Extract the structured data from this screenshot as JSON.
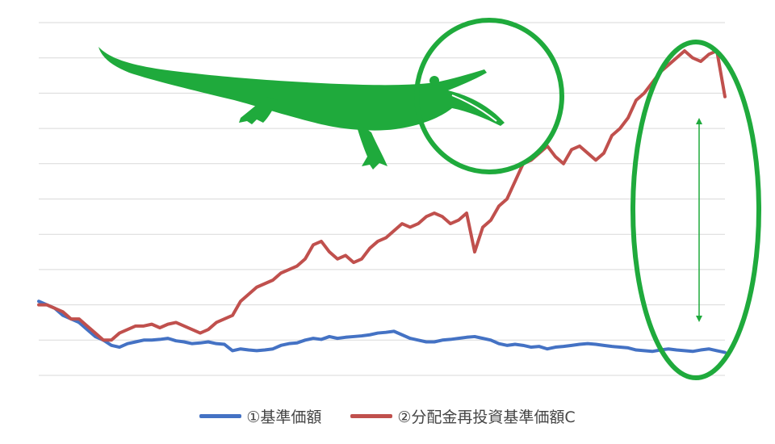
{
  "chart_data": {
    "type": "line",
    "title": "",
    "xlabel": "",
    "ylabel": "",
    "x": [
      0,
      1,
      2,
      3,
      4,
      5,
      6,
      7,
      8,
      9,
      10,
      11,
      12,
      13,
      14,
      15,
      16,
      17,
      18,
      19,
      20,
      21,
      22,
      23,
      24,
      25,
      26,
      27,
      28,
      29,
      30,
      31,
      32,
      33,
      34,
      35,
      36,
      37,
      38,
      39,
      40,
      41,
      42,
      43,
      44,
      45,
      46,
      47,
      48,
      49,
      50,
      51,
      52,
      53,
      54,
      55,
      56,
      57,
      58,
      59,
      60,
      61,
      62,
      63,
      64,
      65,
      66,
      67,
      68,
      69,
      70,
      71,
      72,
      73,
      74,
      75,
      76,
      77,
      78,
      79,
      80,
      81,
      82,
      83,
      84,
      85
    ],
    "ylim": [
      0,
      10
    ],
    "grid": true,
    "legend_position": "bottom",
    "series": [
      {
        "name": "①基準価額",
        "color": "#4472c4",
        "values": [
          2.1,
          2.0,
          1.9,
          1.7,
          1.6,
          1.5,
          1.3,
          1.1,
          1.0,
          0.85,
          0.8,
          0.9,
          0.95,
          1.0,
          1.0,
          1.02,
          1.05,
          0.98,
          0.95,
          0.9,
          0.92,
          0.95,
          0.9,
          0.88,
          0.7,
          0.75,
          0.72,
          0.7,
          0.72,
          0.75,
          0.85,
          0.9,
          0.92,
          1.0,
          1.05,
          1.02,
          1.1,
          1.05,
          1.08,
          1.1,
          1.12,
          1.15,
          1.2,
          1.22,
          1.25,
          1.15,
          1.05,
          1.0,
          0.95,
          0.95,
          1.0,
          1.02,
          1.05,
          1.08,
          1.1,
          1.05,
          1.0,
          0.9,
          0.85,
          0.88,
          0.85,
          0.8,
          0.82,
          0.75,
          0.8,
          0.82,
          0.85,
          0.88,
          0.9,
          0.88,
          0.85,
          0.82,
          0.8,
          0.78,
          0.72,
          0.7,
          0.68,
          0.72,
          0.75,
          0.72,
          0.7,
          0.68,
          0.72,
          0.75,
          0.7,
          0.65
        ]
      },
      {
        "name": "②分配金再投資基準価額C",
        "color": "#c0504d",
        "values": [
          2.0,
          2.0,
          1.9,
          1.8,
          1.6,
          1.6,
          1.4,
          1.2,
          1.0,
          1.0,
          1.2,
          1.3,
          1.4,
          1.4,
          1.45,
          1.35,
          1.45,
          1.5,
          1.4,
          1.3,
          1.2,
          1.3,
          1.5,
          1.6,
          1.7,
          2.1,
          2.3,
          2.5,
          2.6,
          2.7,
          2.9,
          3.0,
          3.1,
          3.3,
          3.7,
          3.8,
          3.5,
          3.3,
          3.4,
          3.2,
          3.3,
          3.6,
          3.8,
          3.9,
          4.1,
          4.3,
          4.2,
          4.3,
          4.5,
          4.6,
          4.5,
          4.3,
          4.4,
          4.6,
          3.5,
          4.2,
          4.4,
          4.8,
          5.0,
          5.5,
          6.0,
          6.1,
          6.3,
          6.5,
          6.2,
          6.0,
          6.4,
          6.5,
          6.3,
          6.1,
          6.3,
          6.8,
          7.0,
          7.3,
          7.8,
          8.0,
          8.3,
          8.6,
          8.8,
          9.0,
          9.2,
          9.0,
          8.9,
          9.1,
          9.2,
          7.9
        ]
      }
    ]
  },
  "legend": {
    "items": [
      {
        "label": "①基準価額",
        "color": "#4472c4"
      },
      {
        "label": "②分配金再投資基準価額C",
        "color": "#c0504d"
      }
    ]
  },
  "annotations": {
    "circle_color": "#1faa3c",
    "crocodile_color": "#1faa3c",
    "arrow_color": "#1faa3c"
  }
}
